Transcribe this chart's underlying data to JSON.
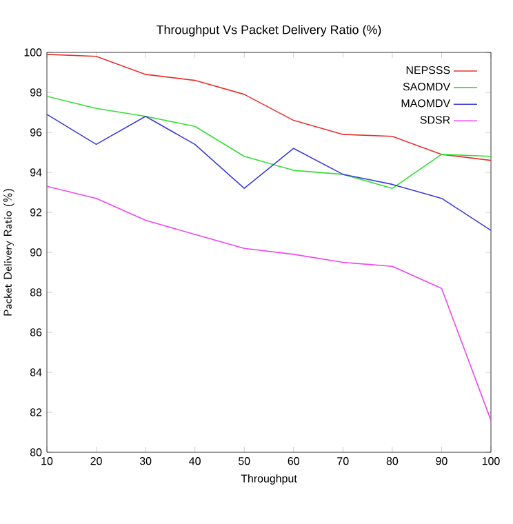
{
  "chart_data": {
    "type": "line",
    "title": "Throughput Vs Packet Delivery Ratio (%)",
    "xlabel": "Throughput",
    "ylabel": "Packet Delivery Ratio (%)",
    "x": [
      10,
      20,
      30,
      40,
      50,
      60,
      70,
      80,
      90,
      100
    ],
    "series": [
      {
        "name": "NEPSSS",
        "color": "#e8302c",
        "values": [
          99.9,
          99.8,
          98.9,
          98.6,
          97.9,
          96.6,
          95.9,
          95.8,
          94.9,
          94.6
        ]
      },
      {
        "name": "SAOMDV",
        "color": "#33dd33",
        "values": [
          97.8,
          97.2,
          96.8,
          96.3,
          94.8,
          94.1,
          93.9,
          93.2,
          94.9,
          94.8
        ]
      },
      {
        "name": "MAOMDV",
        "color": "#3a3adc",
        "values": [
          96.9,
          95.4,
          96.8,
          95.4,
          93.2,
          95.2,
          93.9,
          93.4,
          92.7,
          91.1
        ]
      },
      {
        "name": "SDSR",
        "color": "#ee44ee",
        "values": [
          93.3,
          92.7,
          91.6,
          90.9,
          90.2,
          89.9,
          89.5,
          89.3,
          88.2,
          81.6
        ]
      }
    ],
    "xlim": [
      10,
      100
    ],
    "ylim": [
      80,
      100
    ],
    "xticks": [
      10,
      20,
      30,
      40,
      50,
      60,
      70,
      80,
      90,
      100
    ],
    "yticks": [
      80,
      82,
      84,
      86,
      88,
      90,
      92,
      94,
      96,
      98,
      100
    ],
    "legend": "top right",
    "grid": false,
    "marker": "none",
    "line_style": "solid"
  }
}
